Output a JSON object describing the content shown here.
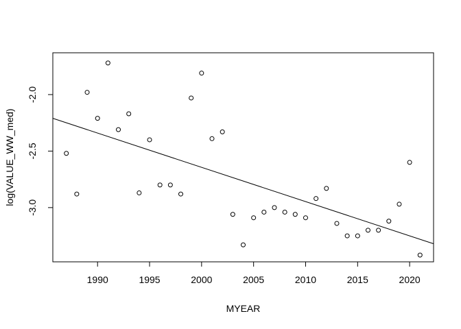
{
  "chart_data": {
    "type": "scatter",
    "xlabel": "MYEAR",
    "ylabel": "log(VALUE_WW_med)",
    "xlim": [
      1985.7,
      2022.3
    ],
    "ylim": [
      -3.48,
      -1.63
    ],
    "xticks": [
      1990,
      1995,
      2000,
      2005,
      2010,
      2015,
      2020
    ],
    "yticks": [
      -3.0,
      -2.5,
      -2.0
    ],
    "ytick_labels": [
      "-3.0",
      "-2.5",
      "-2.0"
    ],
    "grid": false,
    "points": [
      {
        "x": 1987,
        "y": -2.52
      },
      {
        "x": 1988,
        "y": -2.88
      },
      {
        "x": 1989,
        "y": -1.98
      },
      {
        "x": 1990,
        "y": -2.21
      },
      {
        "x": 1991,
        "y": -1.72
      },
      {
        "x": 1992,
        "y": -2.31
      },
      {
        "x": 1993,
        "y": -2.17
      },
      {
        "x": 1994,
        "y": -2.87
      },
      {
        "x": 1995,
        "y": -2.4
      },
      {
        "x": 1996,
        "y": -2.8
      },
      {
        "x": 1997,
        "y": -2.8
      },
      {
        "x": 1998,
        "y": -2.88
      },
      {
        "x": 1999,
        "y": -2.03
      },
      {
        "x": 2000,
        "y": -1.81
      },
      {
        "x": 2001,
        "y": -2.39
      },
      {
        "x": 2002,
        "y": -2.33
      },
      {
        "x": 2003,
        "y": -3.06
      },
      {
        "x": 2004,
        "y": -3.33
      },
      {
        "x": 2005,
        "y": -3.09
      },
      {
        "x": 2006,
        "y": -3.04
      },
      {
        "x": 2007,
        "y": -3.0
      },
      {
        "x": 2008,
        "y": -3.04
      },
      {
        "x": 2009,
        "y": -3.06
      },
      {
        "x": 2010,
        "y": -3.09
      },
      {
        "x": 2011,
        "y": -2.92
      },
      {
        "x": 2012,
        "y": -2.83
      },
      {
        "x": 2013,
        "y": -3.14
      },
      {
        "x": 2014,
        "y": -3.25
      },
      {
        "x": 2015,
        "y": -3.25
      },
      {
        "x": 2016,
        "y": -3.2
      },
      {
        "x": 2017,
        "y": -3.2
      },
      {
        "x": 2018,
        "y": -3.12
      },
      {
        "x": 2019,
        "y": -2.97
      },
      {
        "x": 2020,
        "y": -2.6
      },
      {
        "x": 2021,
        "y": -3.42
      }
    ],
    "trend_line": {
      "x": [
        1985.7,
        2022.3
      ],
      "y": [
        -2.21,
        -3.32
      ]
    }
  }
}
